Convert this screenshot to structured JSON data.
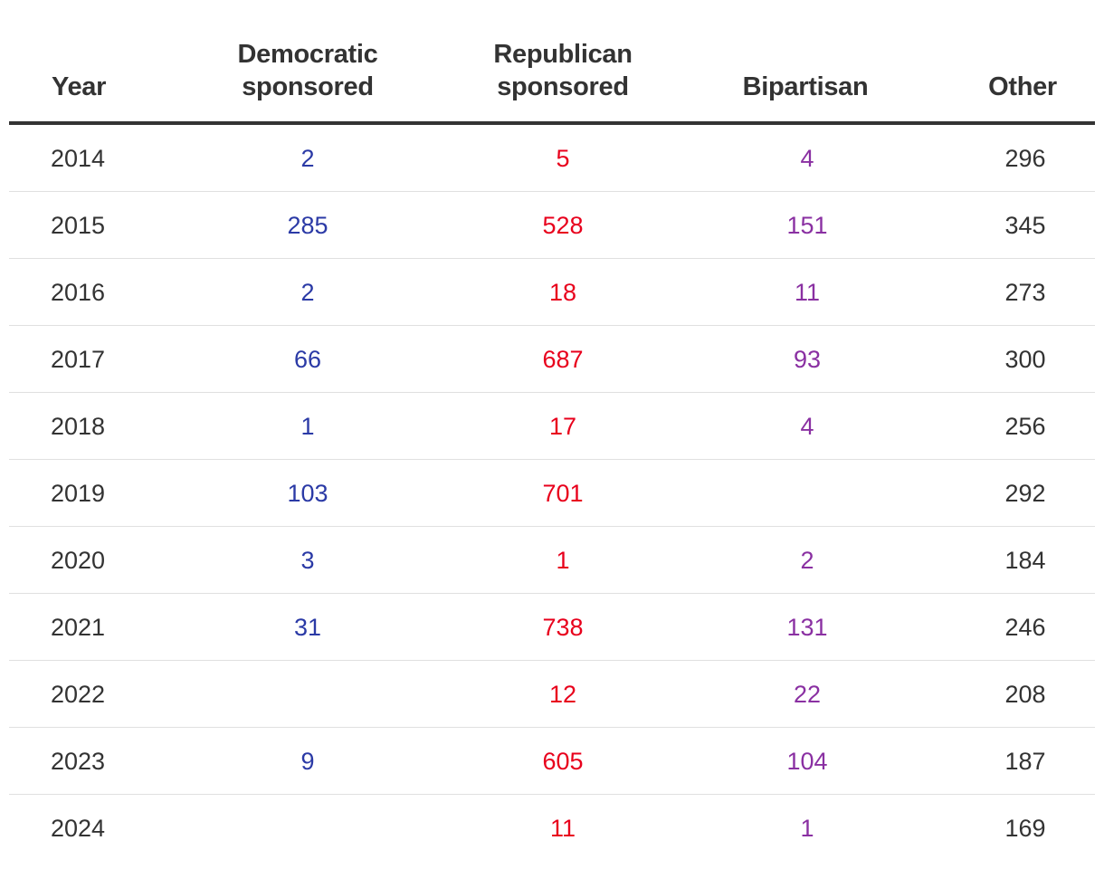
{
  "colors": {
    "democratic": "#2b3aa6",
    "republican": "#e8001c",
    "bipartisan": "#8a30a2",
    "other": "#333333",
    "header_rule": "#333333"
  },
  "table": {
    "headers": {
      "year": "Year",
      "democratic": [
        "Democratic",
        "sponsored"
      ],
      "republican": [
        "Republican",
        "sponsored"
      ],
      "bipartisan": "Bipartisan",
      "other": "Other"
    },
    "rows": [
      {
        "year": "2014",
        "democratic": "2",
        "republican": "5",
        "bipartisan": "4",
        "other": "296"
      },
      {
        "year": "2015",
        "democratic": "285",
        "republican": "528",
        "bipartisan": "151",
        "other": "345"
      },
      {
        "year": "2016",
        "democratic": "2",
        "republican": "18",
        "bipartisan": "11",
        "other": "273"
      },
      {
        "year": "2017",
        "democratic": "66",
        "republican": "687",
        "bipartisan": "93",
        "other": "300"
      },
      {
        "year": "2018",
        "democratic": "1",
        "republican": "17",
        "bipartisan": "4",
        "other": "256"
      },
      {
        "year": "2019",
        "democratic": "103",
        "republican": "701",
        "bipartisan": "",
        "other": "292"
      },
      {
        "year": "2020",
        "democratic": "3",
        "republican": "1",
        "bipartisan": "2",
        "other": "184"
      },
      {
        "year": "2021",
        "democratic": "31",
        "republican": "738",
        "bipartisan": "131",
        "other": "246"
      },
      {
        "year": "2022",
        "democratic": "",
        "republican": "12",
        "bipartisan": "22",
        "other": "208"
      },
      {
        "year": "2023",
        "democratic": "9",
        "republican": "605",
        "bipartisan": "104",
        "other": "187"
      },
      {
        "year": "2024",
        "democratic": "",
        "republican": "11",
        "bipartisan": "1",
        "other": "169"
      }
    ]
  }
}
